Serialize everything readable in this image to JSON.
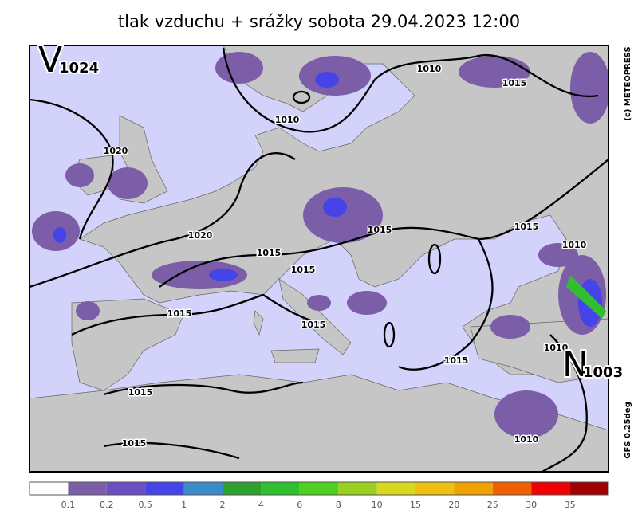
{
  "title": "tlak vzduchu + srážky  sobota 29.04.2023 12:00",
  "pressure_centers": [
    {
      "letter": "V",
      "value": "1024"
    },
    {
      "letter": "N",
      "value": "1003"
    }
  ],
  "isobar_labels": [
    "1010",
    "1015",
    "1010",
    "1020",
    "1020",
    "1015",
    "1015",
    "1015",
    "1015",
    "1010",
    "1015",
    "1015",
    "1015",
    "1010",
    "1015",
    "1015",
    "1010"
  ],
  "credits": {
    "copyright": "(c) METEOPRESS",
    "model": "GFS  0.25deg"
  },
  "legend": {
    "colors": [
      "#ffffff",
      "#7b5ea7",
      "#6a4fc4",
      "#4444e8",
      "#3a8cc8",
      "#2ea02e",
      "#2fbf2f",
      "#4fd020",
      "#9ad020",
      "#d8d820",
      "#f0c010",
      "#f0a000",
      "#f06000",
      "#f00000",
      "#a00000"
    ],
    "labels": [
      0.1,
      0.2,
      0.5,
      1,
      2,
      4,
      6,
      8,
      10,
      15,
      20,
      25,
      30,
      35
    ]
  }
}
